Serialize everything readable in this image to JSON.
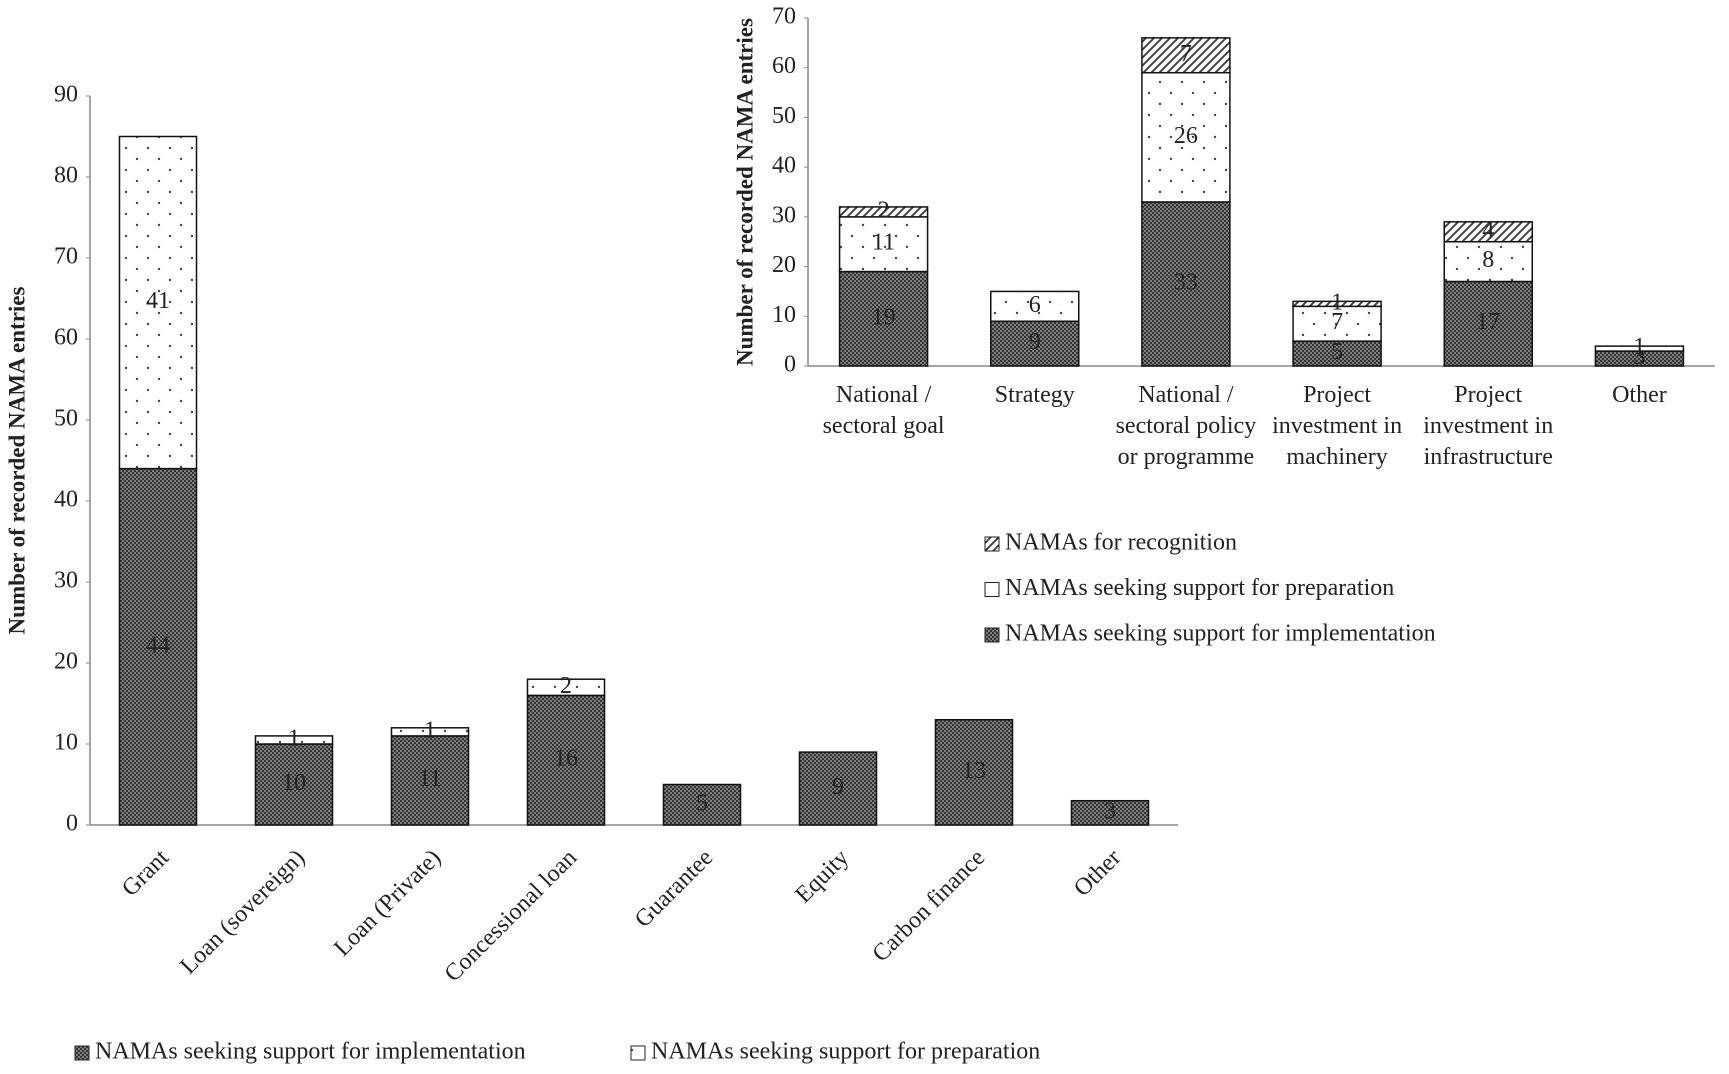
{
  "chart_data": [
    {
      "type": "bar",
      "stacked": true,
      "ylabel": "Number of recorded NAMA entries",
      "categories": [
        "Grant",
        "Loan (sovereign)",
        "Loan (Private)",
        "Concessional loan",
        "Guarantee",
        "Equity",
        "Carbon finance",
        "Other"
      ],
      "series": [
        {
          "name": "NAMAs seeking support for implementation",
          "color": "#7f7f7f",
          "values": [
            44,
            10,
            11,
            16,
            5,
            9,
            13,
            3
          ]
        },
        {
          "name": "NAMAs seeking support for preparation",
          "color": "#ffffff",
          "values": [
            41,
            1,
            1,
            2,
            null,
            null,
            null,
            null
          ]
        }
      ],
      "ylim": [
        0,
        90
      ],
      "yticks": [
        0,
        10,
        20,
        30,
        40,
        50,
        60,
        70,
        80,
        90
      ]
    },
    {
      "type": "bar",
      "stacked": true,
      "ylabel": "Number of recorded NAMA entries",
      "categories": [
        "National / sectoral goal",
        "Strategy",
        "National / sectoral policy or programme",
        "Project investment in machinery",
        "Project investment in infrastructure",
        "Other"
      ],
      "series": [
        {
          "name": "NAMAs seeking support for implementation",
          "color": "#7f7f7f",
          "values": [
            19,
            9,
            33,
            5,
            17,
            3
          ]
        },
        {
          "name": "NAMAs seeking support for preparation",
          "color": "#ffffff",
          "values": [
            11,
            6,
            26,
            7,
            8,
            1
          ]
        },
        {
          "name": "NAMAs for recognition",
          "color": "#ffffff",
          "values": [
            2,
            null,
            7,
            1,
            4,
            null
          ]
        }
      ],
      "ylim": [
        0,
        70
      ],
      "yticks": [
        0,
        10,
        20,
        30,
        40,
        50,
        60,
        70
      ]
    }
  ]
}
